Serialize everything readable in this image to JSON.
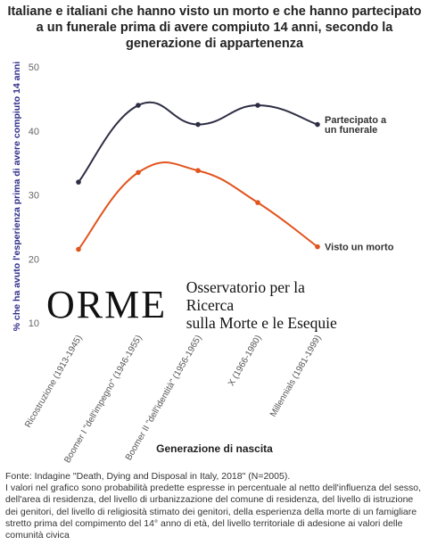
{
  "chart_data": {
    "type": "line",
    "title": "Italiane e italiani che hanno visto un morto e che hanno partecipato a un funerale prima di avere compiuto 14 anni, secondo la generazione di appartenenza",
    "xlabel": "Generazione di nascita",
    "ylabel": "% che ha avuto l'esperienza prima di avere compiuto 14 anni",
    "ylim": [
      10,
      50
    ],
    "yticks": [
      10,
      20,
      30,
      40,
      50
    ],
    "grid": false,
    "legend": "inline-right",
    "categories": [
      "Ricostruzione (1913-1945)",
      "Boomer I \"dell'impegno\" (1946-1955)",
      "Boomer II \"dell'identità\" (1956-1965)",
      "X (1966-1980)",
      "Millennials (1981-1999)"
    ],
    "series": [
      {
        "name": "Partecipato a un funerale",
        "color": "#2d2d44",
        "values": [
          32,
          44,
          41,
          44,
          41
        ]
      },
      {
        "name": "Visto un morto",
        "color": "#e2541e",
        "values": [
          21.5,
          33.5,
          33.8,
          28.8,
          21.9
        ]
      }
    ]
  },
  "logo": {
    "mark": "ORME",
    "text_line1": "Osservatorio per la Ricerca",
    "text_line2": "sulla Morte e le Esequie"
  },
  "footer": {
    "source": "Fonte: Indagine \"Death, Dying and Disposal in Italy, 2018\" (N=2005).",
    "note": "I valori nel grafico sono probabilità predette espresse in percentuale al netto dell'influenza del sesso, dell'area di residenza, del livello di urbanizzazione del comune di residenza, del livello di istruzione dei genitori, del livello di religiosità stimato dei genitori, della esperienza della morte di un famigliare stretto prima del compimento del 14° anno di età, del livello territoriale di adesione ai valori delle comunità civica"
  }
}
